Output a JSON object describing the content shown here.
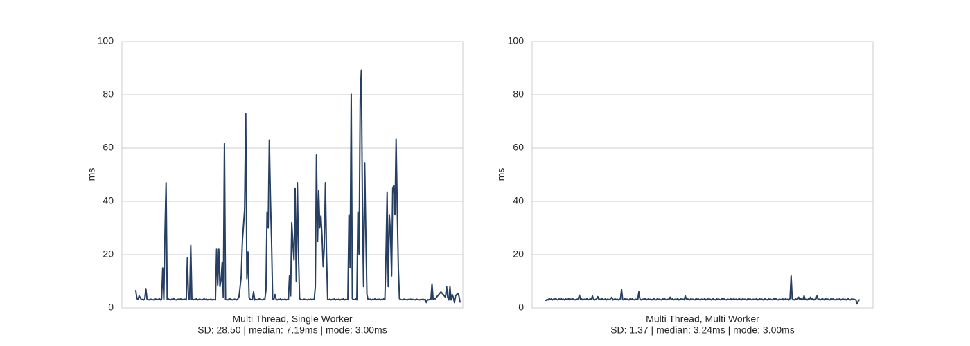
{
  "chart_data": [
    {
      "type": "line",
      "xlabel": "Multi Thread, Single Worker",
      "stats_label": "SD: 28.50 | median: 7.19ms | mode: 3.00ms",
      "ylabel": "ms",
      "ylim": [
        0,
        100
      ],
      "yticks": [
        "0",
        "20",
        "40",
        "60",
        "80",
        "100"
      ],
      "grid": true,
      "line_color": "#273f63",
      "series": [
        {
          "values": [
            6.5,
            3.5,
            3.2,
            4.5,
            3.8,
            3.1,
            3.2,
            3.0,
            3.4,
            7.2,
            3.3,
            3.1,
            3.0,
            3.3,
            3.2,
            3.1,
            3.0,
            3.4,
            3.3,
            3.2,
            3.1,
            3.5,
            3.0,
            3.2,
            15.0,
            3.3,
            28.0,
            47.0,
            3.2,
            3.4,
            3.1,
            3.0,
            3.3,
            3.2,
            3.5,
            3.1,
            3.0,
            3.2,
            3.3,
            3.1,
            3.4,
            3.0,
            3.2,
            3.1,
            3.3,
            3.0,
            18.8,
            3.2,
            3.1,
            23.5,
            3.3,
            3.0,
            3.2,
            3.1,
            3.4,
            3.0,
            3.2,
            3.3,
            3.1,
            3.0,
            3.2,
            3.4,
            3.1,
            3.3,
            3.0,
            3.2,
            3.1,
            3.3,
            3.0,
            3.2,
            3.1,
            3.0,
            22.0,
            8.5,
            22.0,
            8.0,
            10.5,
            17.0,
            4.0,
            61.8,
            3.2,
            3.1,
            3.0,
            3.3,
            3.4,
            3.2,
            3.0,
            3.1,
            3.3,
            3.2,
            3.0,
            3.4,
            4.2,
            8.0,
            12.0,
            25.0,
            31.0,
            37.0,
            72.8,
            11.0,
            21.0,
            4.0,
            3.2,
            3.1,
            3.3,
            6.0,
            3.0,
            3.2,
            3.1,
            3.0,
            3.4,
            3.2,
            3.1,
            3.0,
            3.3,
            3.2,
            6.5,
            36.0,
            30.0,
            63.0,
            41.0,
            25.0,
            3.2,
            3.1,
            5.0,
            3.3,
            3.0,
            3.2,
            3.1,
            3.4,
            3.0,
            3.2,
            3.1,
            3.3,
            3.0,
            3.2,
            3.1,
            12.0,
            4.5,
            32.0,
            24.0,
            18.0,
            45.0,
            10.0,
            47.0,
            20.0,
            3.5,
            3.2,
            3.1,
            3.0,
            3.3,
            3.2,
            3.1,
            3.0,
            3.2,
            3.1,
            3.3,
            3.0,
            3.2,
            3.1,
            8.0,
            57.4,
            25.0,
            44.0,
            30.0,
            34.5,
            27.0,
            15.5,
            23.0,
            47.0,
            20.0,
            3.2,
            3.1,
            3.3,
            3.0,
            3.2,
            3.1,
            3.4,
            3.0,
            3.2,
            3.1,
            3.3,
            3.0,
            3.2,
            3.1,
            3.4,
            3.0,
            3.2,
            3.1,
            3.3,
            35.0,
            15.0,
            80.2,
            3.5,
            3.2,
            3.1,
            3.4,
            3.0,
            36.0,
            20.0,
            78.5,
            89.2,
            38.0,
            8.0,
            54.5,
            28.0,
            5.0,
            3.2,
            3.1,
            3.3,
            3.0,
            3.2,
            3.1,
            3.4,
            3.0,
            3.2,
            3.1,
            3.3,
            3.0,
            3.2,
            3.1,
            3.4,
            3.0,
            20.0,
            43.5,
            8.0,
            35.0,
            28.0,
            12.0,
            45.0,
            46.0,
            35.0,
            63.3,
            38.0,
            15.0,
            3.5,
            3.2,
            3.1,
            3.0,
            3.3,
            3.2,
            3.1,
            3.0,
            3.2,
            3.1,
            3.3,
            3.0,
            3.2,
            3.1,
            3.0,
            3.3,
            3.2,
            3.1,
            3.0,
            3.2,
            3.1,
            3.3,
            3.0,
            3.2,
            2.0,
            3.1,
            3.0,
            3.2,
            3.1,
            9.0,
            3.2,
            3.5,
            3.4,
            4.0,
            4.5,
            5.0,
            5.5,
            6.0,
            5.5,
            5.0,
            4.5,
            4.0,
            8.0,
            4.0,
            3.0,
            8.0,
            3.0,
            5.0,
            4.0,
            2.0,
            4.5,
            5.0,
            5.5,
            4.5,
            2.2
          ]
        }
      ]
    },
    {
      "type": "line",
      "xlabel": "Multi Thread, Multi Worker",
      "stats_label": "SD: 1.37 | median: 3.24ms | mode: 3.00ms",
      "ylabel": "ms",
      "ylim": [
        0,
        100
      ],
      "yticks": [
        "0",
        "20",
        "40",
        "60",
        "80",
        "100"
      ],
      "grid": true,
      "line_color": "#273f63",
      "series": [
        {
          "values": [
            2.8,
            3.2,
            3.0,
            3.5,
            3.1,
            3.4,
            3.0,
            3.3,
            3.2,
            3.6,
            3.1,
            3.0,
            3.4,
            3.2,
            3.5,
            3.1,
            3.3,
            3.0,
            3.4,
            3.2,
            3.1,
            3.5,
            3.0,
            3.3,
            3.2,
            3.4,
            3.1,
            3.0,
            3.3,
            3.2,
            3.5,
            4.8,
            3.1,
            3.4,
            3.0,
            3.2,
            3.3,
            3.1,
            3.5,
            3.0,
            3.2,
            3.4,
            3.1,
            4.5,
            3.3,
            3.0,
            3.2,
            3.4,
            4.2,
            3.1,
            3.3,
            3.0,
            3.5,
            3.2,
            3.1,
            3.4,
            3.0,
            3.3,
            3.2,
            3.1,
            3.5,
            4.0,
            3.0,
            3.2,
            3.4,
            3.1,
            3.3,
            3.0,
            3.2,
            3.5,
            7.0,
            3.1,
            3.0,
            3.4,
            3.2,
            3.3,
            3.1,
            3.0,
            3.5,
            3.2,
            3.4,
            3.1,
            3.0,
            3.3,
            3.2,
            3.1,
            6.0,
            3.4,
            3.0,
            3.2,
            3.3,
            3.1,
            3.5,
            3.0,
            3.2,
            3.4,
            3.1,
            3.3,
            3.0,
            3.2,
            3.5,
            3.1,
            3.0,
            3.4,
            3.2,
            3.3,
            3.1,
            3.0,
            3.5,
            3.2,
            3.4,
            3.1,
            3.0,
            3.3,
            3.2,
            4.0,
            3.1,
            3.4,
            3.0,
            3.2,
            3.3,
            3.1,
            3.5,
            3.0,
            3.2,
            3.4,
            3.1,
            3.3,
            3.0,
            4.5,
            3.2,
            3.5,
            3.1,
            3.0,
            3.4,
            3.2,
            3.3,
            3.1,
            3.0,
            3.5,
            3.2,
            3.4,
            3.1,
            3.0,
            3.3,
            3.2,
            3.1,
            3.5,
            3.0,
            3.2,
            3.4,
            3.1,
            3.3,
            3.0,
            3.2,
            3.5,
            3.1,
            3.0,
            3.4,
            3.2,
            3.3,
            3.1,
            3.0,
            3.5,
            3.2,
            3.4,
            3.1,
            3.0,
            3.3,
            3.2,
            3.1,
            3.5,
            3.0,
            3.2,
            3.4,
            3.1,
            3.3,
            3.0,
            3.2,
            3.5,
            3.1,
            3.0,
            3.4,
            3.2,
            3.3,
            3.1,
            3.0,
            3.5,
            3.2,
            3.4,
            3.1,
            3.0,
            3.3,
            3.2,
            3.1,
            3.5,
            3.0,
            3.2,
            3.4,
            3.1,
            3.3,
            3.0,
            3.2,
            3.5,
            3.1,
            3.0,
            3.4,
            3.2,
            3.3,
            3.1,
            3.0,
            3.5,
            3.2,
            3.4,
            3.1,
            3.0,
            3.3,
            3.2,
            3.1,
            3.5,
            3.0,
            3.2,
            3.4,
            3.1,
            3.3,
            3.0,
            3.6,
            12.0,
            3.5,
            3.1,
            3.0,
            3.4,
            3.2,
            3.3,
            4.0,
            3.1,
            3.5,
            3.0,
            3.2,
            4.5,
            3.1,
            3.3,
            3.0,
            3.4,
            3.2,
            4.0,
            3.1,
            3.5,
            3.0,
            3.2,
            3.4,
            4.5,
            3.1,
            3.3,
            3.0,
            3.2,
            3.5,
            3.1,
            3.0,
            3.4,
            3.2,
            3.3,
            3.1,
            3.0,
            3.5,
            3.2,
            3.4,
            3.1,
            3.0,
            3.3,
            3.2,
            3.1,
            3.5,
            3.0,
            3.2,
            3.4,
            3.1,
            3.3,
            3.0,
            3.2,
            3.5,
            3.1,
            3.0,
            3.4,
            3.2,
            3.3,
            3.1,
            3.0,
            1.5,
            2.5,
            3.0
          ]
        }
      ]
    }
  ]
}
